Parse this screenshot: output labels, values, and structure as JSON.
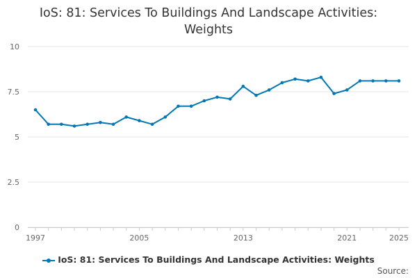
{
  "chart_data": {
    "type": "line",
    "title_lines": [
      "IoS: 81: Services To Buildings And Landscape Activities:",
      "Weights"
    ],
    "x": [
      1997,
      1998,
      1999,
      2000,
      2001,
      2002,
      2003,
      2004,
      2005,
      2006,
      2007,
      2008,
      2009,
      2010,
      2011,
      2012,
      2013,
      2014,
      2015,
      2016,
      2017,
      2018,
      2019,
      2020,
      2021,
      2022,
      2023,
      2024,
      2025
    ],
    "series": [
      {
        "name": "IoS: 81: Services To Buildings And Landscape Activities: Weights",
        "color": "#0077b5",
        "values": [
          6.5,
          5.7,
          5.7,
          5.6,
          5.7,
          5.8,
          5.7,
          6.1,
          5.9,
          5.7,
          6.1,
          6.7,
          6.7,
          7.0,
          7.2,
          7.1,
          7.8,
          7.3,
          7.6,
          8.0,
          8.2,
          8.1,
          8.3,
          7.4,
          7.6,
          8.1,
          8.1,
          8.1,
          8.1
        ]
      }
    ],
    "xticks": [
      1997,
      2005,
      2013,
      2021,
      2025
    ],
    "xlim": [
      1997,
      2025
    ],
    "ylim": [
      0,
      10
    ],
    "yticks": [
      0,
      2.5,
      5,
      7.5,
      10
    ],
    "ytick_labels": [
      "0",
      "2.5",
      "5",
      "7.5",
      "10"
    ],
    "xlabel": "",
    "ylabel": "",
    "grid": true,
    "legend_position": "bottom"
  },
  "source_label": "Source:"
}
